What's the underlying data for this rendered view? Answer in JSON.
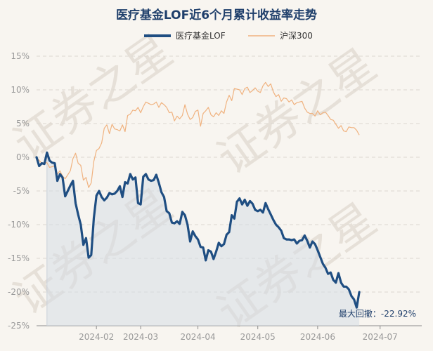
{
  "chart_data": {
    "type": "line",
    "title": "医疗基金LOF近6个月累计收益率走势",
    "watermark": "证券之星",
    "xlabel": "",
    "ylabel": "",
    "ylim": [
      -25,
      15
    ],
    "y_ticks": [
      15,
      10,
      5,
      0,
      -5,
      -10,
      -15,
      -20,
      -25
    ],
    "y_tick_labels": [
      "15%",
      "10%",
      "5%",
      "0%",
      "-5%",
      "-10%",
      "-15%",
      "-20%",
      "-25%"
    ],
    "x_range": [
      0,
      148
    ],
    "x_ticks": [
      {
        "label": "2024-02",
        "x": 23
      },
      {
        "label": "2024-03",
        "x": 40
      },
      {
        "label": "2024-04",
        "x": 62
      },
      {
        "label": "2024-05",
        "x": 85
      },
      {
        "label": "2024-06",
        "x": 108
      },
      {
        "label": "2024-07",
        "x": 132
      }
    ],
    "series": [
      {
        "name": "医疗基金LOF",
        "color": "#1f4e82",
        "points": [
          [
            0,
            0
          ],
          [
            1,
            -1.3
          ],
          [
            2,
            -0.9
          ],
          [
            3,
            -1.0
          ],
          [
            4,
            0.7
          ],
          [
            5,
            -0.5
          ],
          [
            6,
            -0.8
          ],
          [
            7,
            -0.9
          ],
          [
            8,
            -3.5
          ],
          [
            9,
            -2.5
          ],
          [
            10,
            -3.0
          ],
          [
            11,
            -5.8
          ],
          [
            12,
            -5.0
          ],
          [
            13,
            -4.2
          ],
          [
            14,
            -3.5
          ],
          [
            15,
            -6.8
          ],
          [
            16,
            -8.5
          ],
          [
            17,
            -10.0
          ],
          [
            18,
            -13.0
          ],
          [
            19,
            -12.0
          ],
          [
            20,
            -14.9
          ],
          [
            21,
            -14.5
          ],
          [
            22,
            -9.0
          ],
          [
            23,
            -5.7
          ],
          [
            24,
            -5.0
          ],
          [
            25,
            -5.9
          ],
          [
            26,
            -6.4
          ],
          [
            27,
            -6.0
          ],
          [
            28,
            -5.3
          ],
          [
            29,
            -5.5
          ],
          [
            30,
            -5.4
          ],
          [
            31,
            -5.0
          ],
          [
            32,
            -4.3
          ],
          [
            33,
            -5.9
          ],
          [
            34,
            -3.7
          ],
          [
            35,
            -3.9
          ],
          [
            36,
            -2.5
          ],
          [
            37,
            -3.3
          ],
          [
            38,
            -3.0
          ],
          [
            39,
            -6.8
          ],
          [
            40,
            -7.0
          ],
          [
            41,
            -2.9
          ],
          [
            42,
            -2.5
          ],
          [
            43,
            -3.3
          ],
          [
            44,
            -3.5
          ],
          [
            45,
            -3.4
          ],
          [
            46,
            -2.6
          ],
          [
            47,
            -3.8
          ],
          [
            48,
            -5.2
          ],
          [
            49,
            -5.9
          ],
          [
            50,
            -8.0
          ],
          [
            51,
            -8.3
          ],
          [
            52,
            -9.7
          ],
          [
            53,
            -9.8
          ],
          [
            54,
            -9.5
          ],
          [
            55,
            -9.9
          ],
          [
            56,
            -8.1
          ],
          [
            57,
            -8.6
          ],
          [
            58,
            -10.0
          ],
          [
            59,
            -12.5
          ],
          [
            60,
            -11.0
          ],
          [
            61,
            -11.7
          ],
          [
            62,
            -12.2
          ],
          [
            63,
            -13.3
          ],
          [
            64,
            -13.4
          ],
          [
            65,
            -15.3
          ],
          [
            66,
            -13.8
          ],
          [
            67,
            -14.0
          ],
          [
            68,
            -15.1
          ],
          [
            69,
            -14.0
          ],
          [
            70,
            -12.7
          ],
          [
            71,
            -13.2
          ],
          [
            72,
            -12.9
          ],
          [
            73,
            -11.5
          ],
          [
            74,
            -11.1
          ],
          [
            75,
            -8.6
          ],
          [
            76,
            -9.1
          ],
          [
            77,
            -6.6
          ],
          [
            78,
            -6.1
          ],
          [
            79,
            -7.0
          ],
          [
            80,
            -6.3
          ],
          [
            81,
            -7.2
          ],
          [
            82,
            -6.5
          ],
          [
            83,
            -6.9
          ],
          [
            84,
            -7.8
          ],
          [
            85,
            -8.0
          ],
          [
            86,
            -7.8
          ],
          [
            87,
            -8.2
          ],
          [
            88,
            -6.8
          ],
          [
            89,
            -7.7
          ],
          [
            90,
            -8.5
          ],
          [
            91,
            -9.3
          ],
          [
            92,
            -10.0
          ],
          [
            93,
            -10.4
          ],
          [
            94,
            -10.9
          ],
          [
            95,
            -12.0
          ],
          [
            96,
            -12.2
          ],
          [
            97,
            -12.2
          ],
          [
            98,
            -12.3
          ],
          [
            99,
            -12.2
          ],
          [
            100,
            -12.8
          ],
          [
            101,
            -12.4
          ],
          [
            102,
            -12.3
          ],
          [
            103,
            -11.6
          ],
          [
            104,
            -12.4
          ],
          [
            105,
            -13.4
          ],
          [
            106,
            -12.5
          ],
          [
            107,
            -12.9
          ],
          [
            108,
            -13.8
          ],
          [
            109,
            -14.8
          ],
          [
            110,
            -15.8
          ],
          [
            111,
            -16.4
          ],
          [
            112,
            -17.3
          ],
          [
            113,
            -17.1
          ],
          [
            114,
            -18.2
          ],
          [
            115,
            -18.6
          ],
          [
            116,
            -17.2
          ],
          [
            117,
            -18.6
          ],
          [
            118,
            -19.2
          ],
          [
            119,
            -19.2
          ],
          [
            120,
            -19.6
          ],
          [
            121,
            -20.6
          ],
          [
            122,
            -21.1
          ],
          [
            123,
            -22.3
          ],
          [
            124,
            -20.0
          ]
        ]
      },
      {
        "name": "沪深300",
        "color": "#f0b27f",
        "points": [
          [
            0,
            0
          ],
          [
            2,
            -0.9
          ],
          [
            4,
            -0.8
          ],
          [
            5,
            -1.5
          ],
          [
            7,
            -1.3
          ],
          [
            8,
            -2.5
          ],
          [
            9,
            -2.0
          ],
          [
            10,
            -2.8
          ],
          [
            11,
            -3.2
          ],
          [
            12,
            -2.6
          ],
          [
            13,
            -2.0
          ],
          [
            14,
            -0.2
          ],
          [
            15,
            0.6
          ],
          [
            16,
            -0.9
          ],
          [
            17,
            -1.2
          ],
          [
            18,
            -3.4
          ],
          [
            19,
            -3.0
          ],
          [
            20,
            -4.5
          ],
          [
            21,
            -3.8
          ],
          [
            22,
            -0.6
          ],
          [
            23,
            1.0
          ],
          [
            24,
            1.3
          ],
          [
            25,
            2.1
          ],
          [
            26,
            4.3
          ],
          [
            27,
            4.8
          ],
          [
            28,
            3.5
          ],
          [
            29,
            4.9
          ],
          [
            30,
            4.2
          ],
          [
            31,
            4.1
          ],
          [
            32,
            3.9
          ],
          [
            33,
            4.8
          ],
          [
            34,
            3.8
          ],
          [
            35,
            6.2
          ],
          [
            36,
            6.4
          ],
          [
            37,
            7.0
          ],
          [
            38,
            6.9
          ],
          [
            39,
            7.4
          ],
          [
            40,
            6.6
          ],
          [
            41,
            7.5
          ],
          [
            42,
            8.2
          ],
          [
            43,
            8.0
          ],
          [
            44,
            7.8
          ],
          [
            45,
            7.9
          ],
          [
            46,
            8.2
          ],
          [
            47,
            7.4
          ],
          [
            48,
            8.1
          ],
          [
            49,
            7.8
          ],
          [
            50,
            7.4
          ],
          [
            51,
            6.6
          ],
          [
            52,
            6.7
          ],
          [
            53,
            5.4
          ],
          [
            54,
            6.1
          ],
          [
            55,
            5.7
          ],
          [
            56,
            6.2
          ],
          [
            57,
            7.8
          ],
          [
            58,
            6.4
          ],
          [
            59,
            5.6
          ],
          [
            60,
            5.9
          ],
          [
            61,
            6.8
          ],
          [
            62,
            7.0
          ],
          [
            63,
            4.6
          ],
          [
            64,
            6.5
          ],
          [
            65,
            6.9
          ],
          [
            66,
            7.4
          ],
          [
            67,
            6.3
          ],
          [
            68,
            6.0
          ],
          [
            69,
            6.6
          ],
          [
            70,
            6.2
          ],
          [
            71,
            6.9
          ],
          [
            72,
            6.5
          ],
          [
            73,
            8.2
          ],
          [
            74,
            9.2
          ],
          [
            75,
            8.4
          ],
          [
            76,
            10.2
          ],
          [
            77,
            10.1
          ],
          [
            78,
            10.0
          ],
          [
            79,
            9.3
          ],
          [
            80,
            10.2
          ],
          [
            81,
            10.4
          ],
          [
            82,
            9.6
          ],
          [
            83,
            9.9
          ],
          [
            84,
            10.3
          ],
          [
            85,
            9.8
          ],
          [
            86,
            9.6
          ],
          [
            87,
            10.6
          ],
          [
            88,
            11.1
          ],
          [
            89,
            10.5
          ],
          [
            90,
            10.9
          ],
          [
            91,
            9.7
          ],
          [
            92,
            9.0
          ],
          [
            93,
            9.3
          ],
          [
            94,
            8.3
          ],
          [
            95,
            8.8
          ],
          [
            96,
            8.7
          ],
          [
            97,
            8.2
          ],
          [
            98,
            8.5
          ],
          [
            99,
            7.8
          ],
          [
            100,
            8.1
          ],
          [
            101,
            8.2
          ],
          [
            102,
            8.3
          ],
          [
            103,
            7.3
          ],
          [
            104,
            6.7
          ],
          [
            105,
            6.5
          ],
          [
            106,
            6.5
          ],
          [
            107,
            6.1
          ],
          [
            108,
            6.9
          ],
          [
            109,
            6.3
          ],
          [
            110,
            6.6
          ],
          [
            111,
            6.7
          ],
          [
            112,
            6.2
          ],
          [
            113,
            5.6
          ],
          [
            114,
            5.5
          ],
          [
            115,
            4.9
          ],
          [
            116,
            4.3
          ],
          [
            117,
            4.7
          ],
          [
            118,
            3.9
          ],
          [
            119,
            3.8
          ],
          [
            120,
            4.5
          ],
          [
            121,
            4.4
          ],
          [
            122,
            4.4
          ],
          [
            123,
            4.0
          ],
          [
            124,
            3.3
          ]
        ]
      }
    ],
    "shade_from_x": 4,
    "annotations": [
      {
        "text": "最大回撤：-22.92%"
      }
    ]
  }
}
